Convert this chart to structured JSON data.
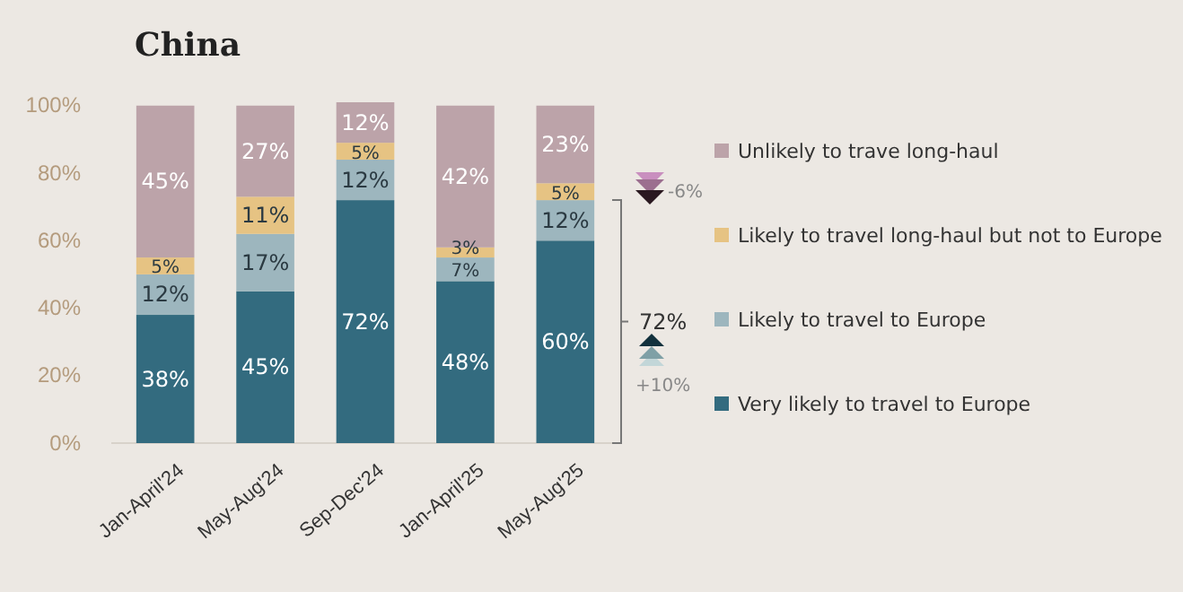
{
  "chart_data": {
    "type": "bar",
    "title": "China",
    "stacked": true,
    "categories": [
      "Jan-April'24",
      "May-Aug'24",
      "Sep-Dec'24",
      "Jan-April'25",
      "May-Aug'25"
    ],
    "series": [
      {
        "name": "Very likely to travel to Europe",
        "color": "#336b7f",
        "values": [
          38,
          45,
          72,
          48,
          60
        ],
        "value_labels": [
          "38%",
          "45%",
          "72%",
          "48%",
          "60%"
        ]
      },
      {
        "name": "Likely to travel to Europe",
        "color": "#9db6be",
        "values": [
          12,
          17,
          12,
          7,
          12
        ],
        "value_labels": [
          "12%",
          "17%",
          "12%",
          "7%",
          "12%"
        ]
      },
      {
        "name": "Likely to travel long-haul but not to Europe",
        "color": "#e6c383",
        "values": [
          5,
          11,
          5,
          3,
          5
        ],
        "value_labels": [
          "5%",
          "11%",
          "5%",
          "3%",
          "5%"
        ]
      },
      {
        "name": "Unlikely to trave long-haul",
        "color": "#bca3a9",
        "values": [
          45,
          27,
          12,
          42,
          23
        ],
        "value_labels": [
          "45%",
          "27%",
          "12%",
          "42%",
          "23%"
        ]
      }
    ],
    "ylim": [
      0,
      101
    ],
    "yticks": [
      {
        "value": 0,
        "label": "0%"
      },
      {
        "value": 20,
        "label": "20%"
      },
      {
        "value": 40,
        "label": "40%"
      },
      {
        "value": 60,
        "label": "60%"
      },
      {
        "value": 80,
        "label": "80%"
      },
      {
        "value": 100,
        "label": "100%"
      }
    ],
    "grid": false,
    "legend": "right",
    "annotations": [
      "72%",
      "+10%",
      "-6%"
    ]
  }
}
